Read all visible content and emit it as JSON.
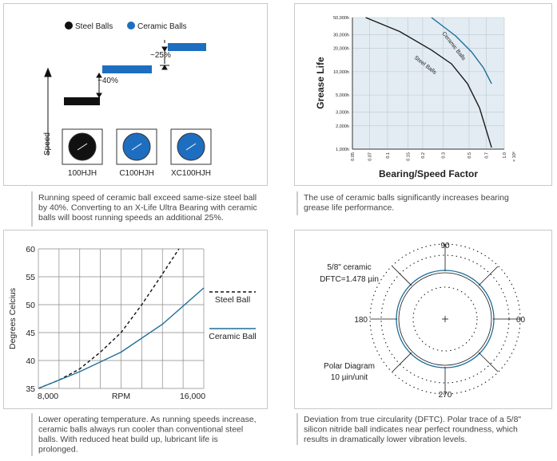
{
  "speed_panel": {
    "legend": [
      "Steel Balls",
      "Ceramic Balls"
    ],
    "step_labels": [
      "~40%",
      "~25%"
    ],
    "axis_label": "Speed",
    "bearings": [
      "100HJH",
      "C100HJH",
      "XC100HJH"
    ]
  },
  "grease_chart": {
    "type": "line",
    "y_label": "Grease Life",
    "x_label": "Bearing/Speed Factor",
    "x_unit": "× 10⁶",
    "xscale": "log",
    "yscale": "log",
    "grid": true,
    "xlim": [
      0.05,
      1.0
    ],
    "ylim": [
      1000,
      50000
    ],
    "xticks": [
      0.05,
      0.07,
      0.1,
      0.15,
      0.2,
      0.3,
      0.5,
      0.7,
      {
        "value": 1,
        "label": "1.0"
      }
    ],
    "yticks": [
      {
        "value": 1000,
        "label": "1,000h"
      },
      {
        "value": 2000,
        "label": "2,000h"
      },
      {
        "value": 3000,
        "label": "3,000h"
      },
      {
        "value": 5000,
        "label": "5,000h"
      },
      {
        "value": 10000,
        "label": "10,000h"
      },
      {
        "value": 20000,
        "label": "20,000h"
      },
      {
        "value": 30000,
        "label": "30,000h"
      },
      {
        "value": 50000,
        "label": "50,000h"
      }
    ],
    "series": [
      {
        "name": "Ceramic Balls",
        "color": "#1e6e99",
        "x": [
          0.238,
          0.383,
          0.525,
          0.664,
          0.778
        ],
        "values": [
          50000,
          29000,
          18000,
          11200,
          7000
        ]
      },
      {
        "name": "Steel Balls",
        "color": "#1a1a1a",
        "x": [
          0.065,
          0.127,
          0.238,
          0.353,
          0.484,
          0.614,
          0.778
        ],
        "values": [
          50000,
          33000,
          19000,
          12600,
          7000,
          3400,
          1050
        ]
      }
    ]
  },
  "temperature_chart": {
    "type": "line",
    "y_label": "Degrees Celcius",
    "x_label": "RPM",
    "grid": true,
    "xlim": [
      8000,
      16000
    ],
    "ylim": [
      35,
      60
    ],
    "xticks": [
      {
        "value": 8000,
        "label": "8,000"
      },
      {
        "value": 16000,
        "label": "16,000"
      }
    ],
    "xgrid": [
      8000,
      9000,
      10000,
      11000,
      12000,
      13000,
      14000,
      15000,
      16000
    ],
    "yticks": [
      35,
      40,
      45,
      50,
      55,
      60
    ],
    "series": [
      {
        "name": "Steel Ball",
        "color": "#111111",
        "dashed": true,
        "x": [
          8000,
          9000,
          10000,
          11000,
          12000,
          13000,
          14000,
          14800
        ],
        "values": [
          35,
          36.5,
          38.5,
          41.5,
          45,
          50,
          55.5,
          60
        ]
      },
      {
        "name": "Ceramic Ball",
        "color": "#1e6e99",
        "dashed": false,
        "x": [
          8000,
          10000,
          12000,
          14000,
          16000
        ],
        "values": [
          35,
          38,
          41.5,
          46.5,
          53
        ]
      }
    ]
  },
  "polar_panel": {
    "angles": [
      "90",
      "180",
      "00",
      "270"
    ],
    "sample": [
      "5/8\" ceramic",
      "DFTC=1.478 µin"
    ],
    "scale": [
      "Polar Diagram",
      "10 µin/unit"
    ]
  },
  "captions": [
    [
      "Running speed of ceramic ball exceed same-size steel ball",
      "by 40%. Converting to an X-Life Ultra Bearing with ceramic",
      "balls will boost running speeds an additional 25%."
    ],
    [
      "The use of ceramic balls significantly increases bearing",
      "grease life performance."
    ],
    [
      "Lower operating temperature. As running speeds increase,",
      "ceramic balls always run cooler than conventional steel",
      "balls. With reduced heat build up, lubricant life is",
      "prolonged."
    ],
    [
      "Deviation from true circularity (DFTC). Polar trace of a 5/8\"",
      "silicon nitride ball indicates near perfect roundness, which",
      "results in dramatically lower vibration levels."
    ]
  ]
}
